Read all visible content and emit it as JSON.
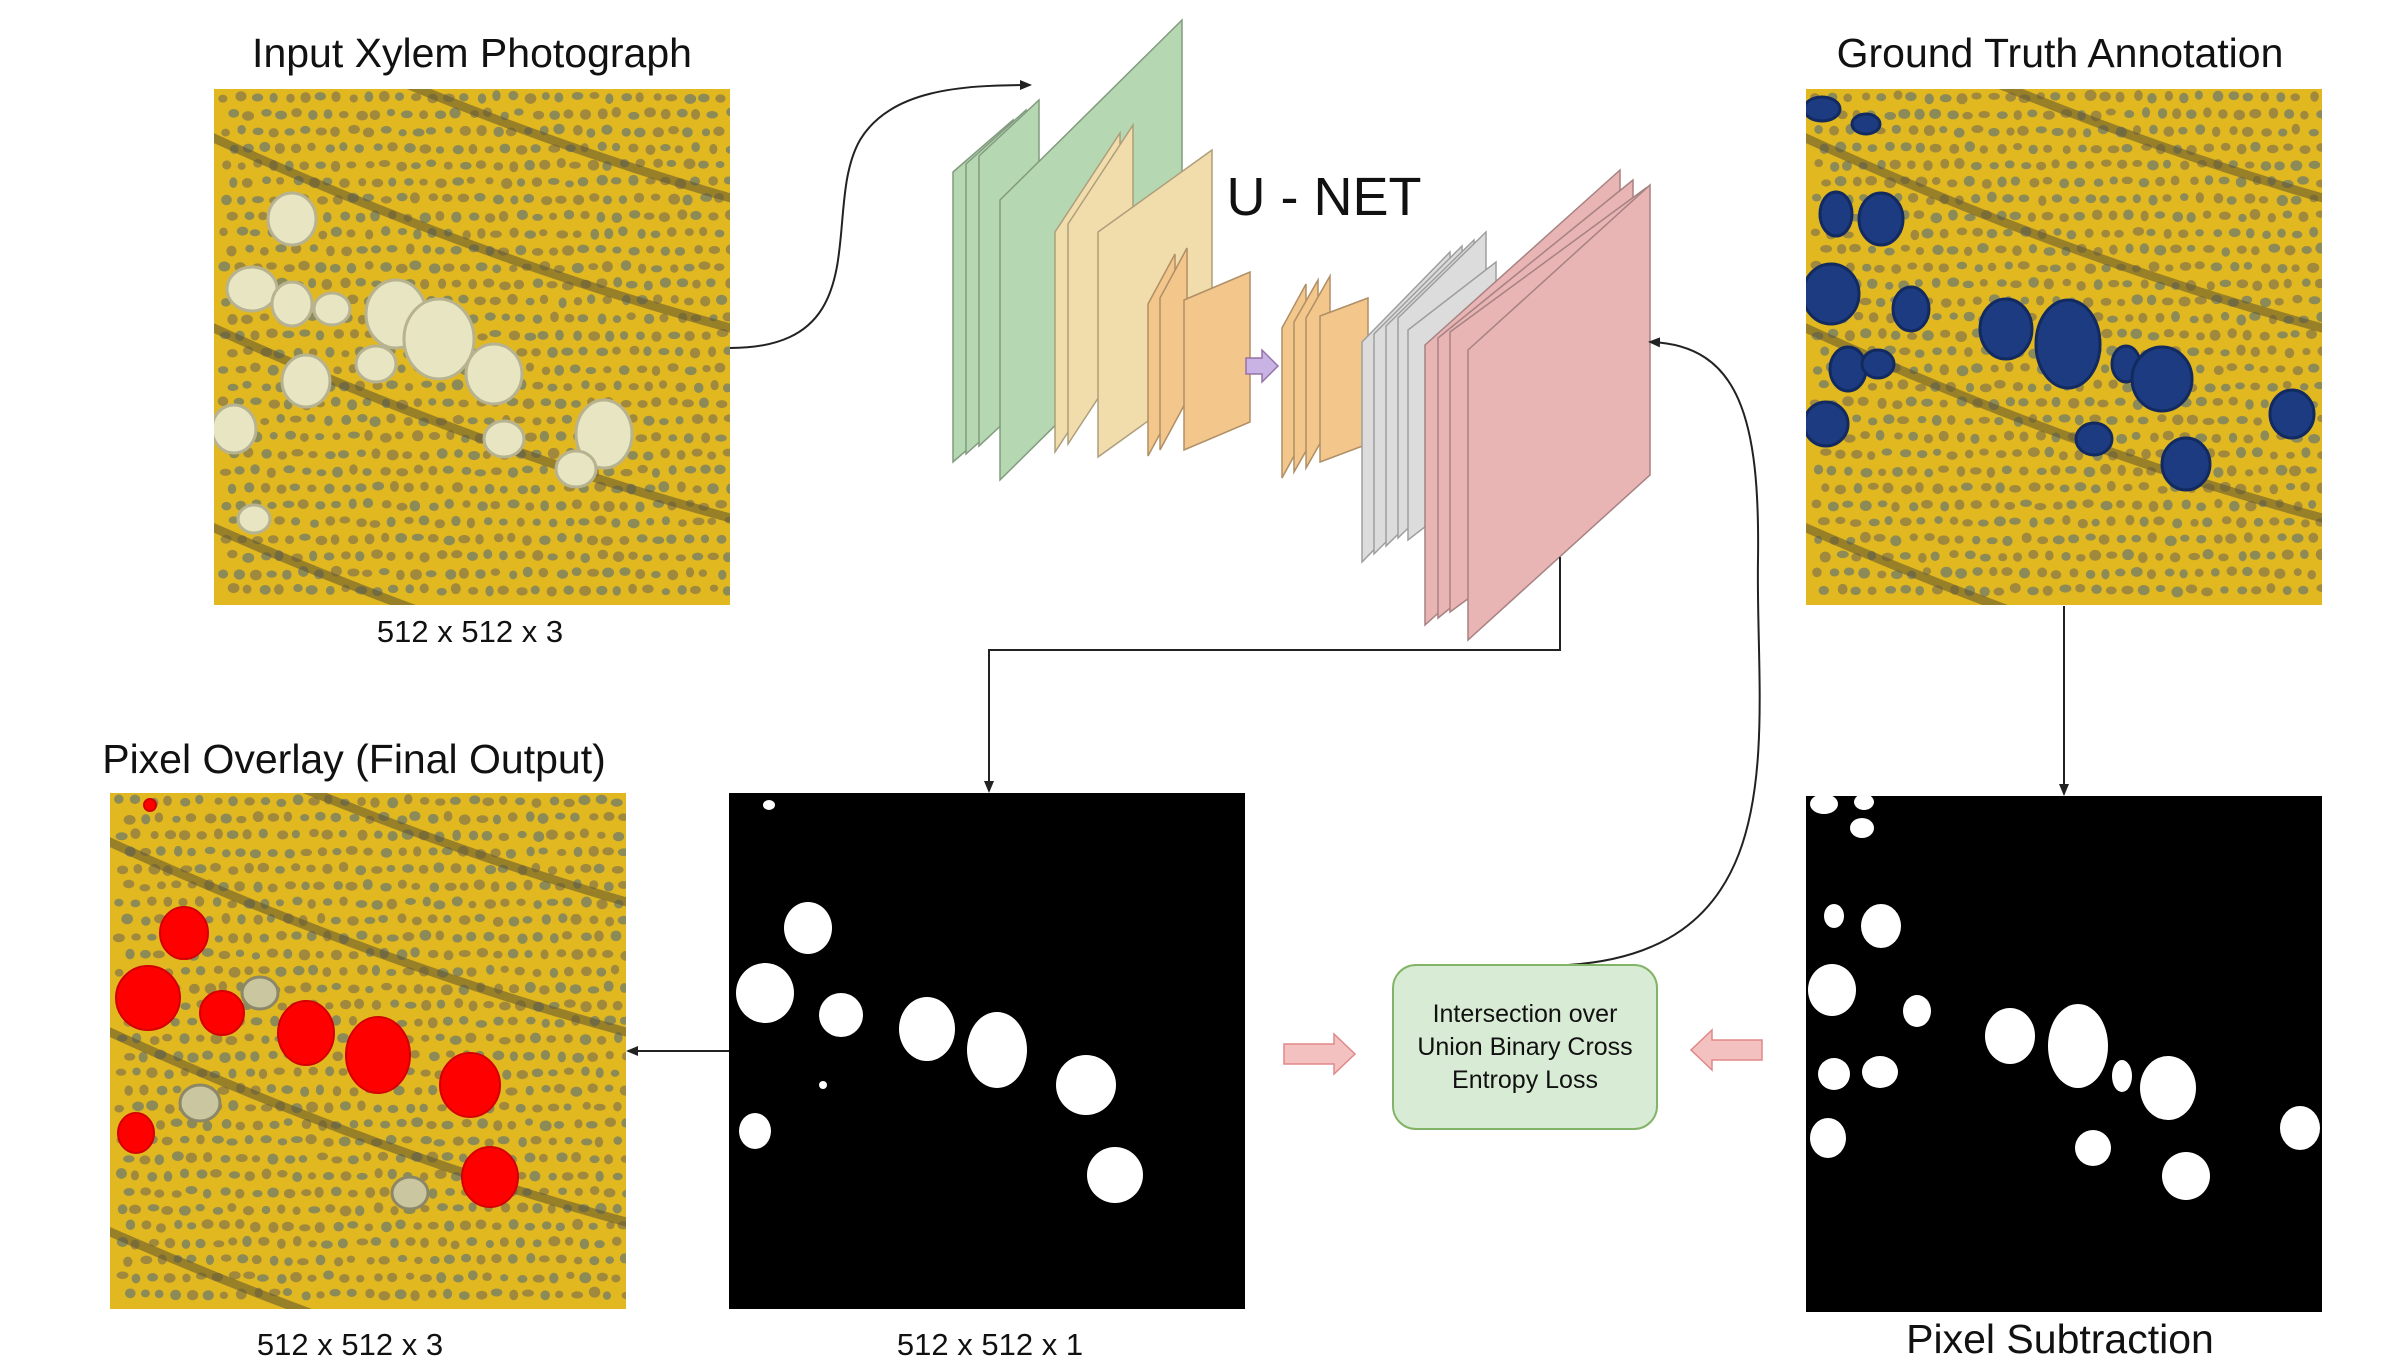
{
  "diagram_title": "U - NET",
  "panels": {
    "input": {
      "title": "Input Xylem Photograph",
      "dims": "512 x 512 x 3"
    },
    "ground_truth": {
      "title": "Ground Truth Annotation"
    },
    "overlay": {
      "title": "Pixel Overlay (Final Output)",
      "dims": "512 x 512 x 3"
    },
    "prediction": {
      "dims": "512 x 512 x 1"
    },
    "subtraction": {
      "title": "Pixel Subtraction"
    }
  },
  "loss": {
    "lines": [
      "Intersection over",
      "Union Binary Cross",
      "Entropy Loss"
    ]
  },
  "colors": {
    "xylem_tissue": "#e1b820",
    "ground_truth_vessel": "#1c3b80",
    "overlay_vessel": "#ff0000",
    "encoder_block_1": "#b5d7b1",
    "encoder_block_2": "#f1dcab",
    "encoder_block_3": "#f3c68c",
    "decoder_block_1": "#dcdcdc",
    "decoder_block_2": "#e8b4b4",
    "loss_box": "#d8ebd4",
    "bottleneck_arrow": "#c9b3e4",
    "loss_arrow": "#f4c1c1"
  }
}
